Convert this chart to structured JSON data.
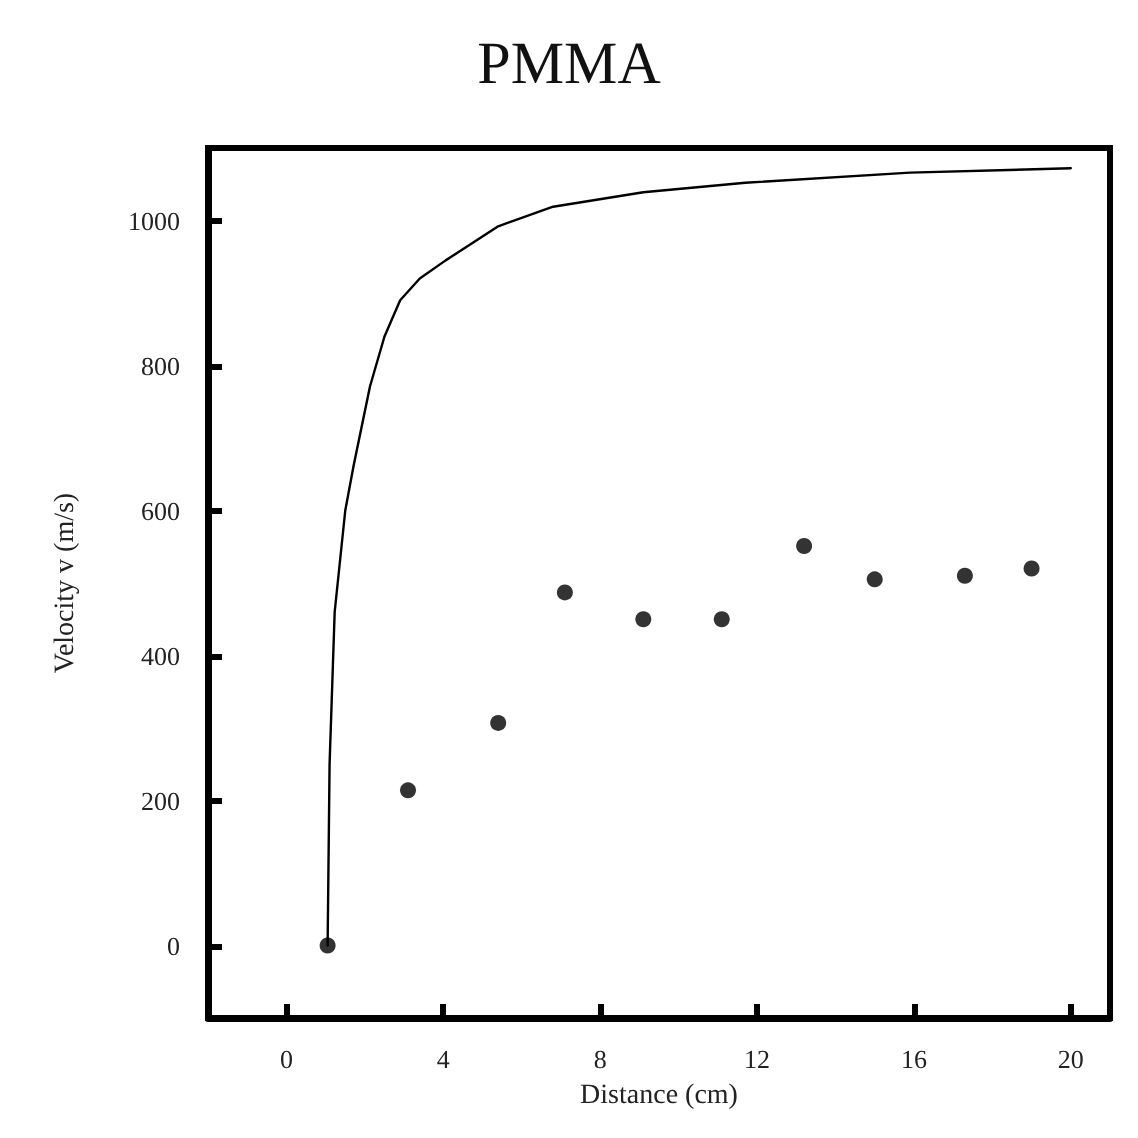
{
  "chart_data": {
    "type": "scatter",
    "title": "PMMA",
    "xlabel": "Distance (cm)",
    "ylabel": "Velocity v (m/s)",
    "xlim": [
      -2,
      21
    ],
    "xticks": [
      0,
      4,
      8,
      12,
      16,
      20
    ],
    "ylim": [
      -100,
      1100
    ],
    "yticks": [
      0,
      200,
      400,
      600,
      800,
      1000
    ],
    "grid": false,
    "series": [
      {
        "type": "line",
        "color": "#000000",
        "marker": "none",
        "x": [
          1.05,
          1.1,
          1.23,
          1.5,
          1.71,
          2.13,
          2.5,
          2.9,
          3.4,
          4.06,
          5.4,
          6.8,
          9.1,
          11.7,
          15.9,
          20
        ],
        "values": [
          0,
          250,
          460,
          600,
          661,
          771,
          840,
          890,
          920,
          945,
          992,
          1019,
          1039,
          1052,
          1066,
          1072
        ]
      },
      {
        "color": "#000000",
        "marker": "circle",
        "x": [
          1.05,
          3.1,
          5.4,
          7.1,
          9.1,
          11.1,
          13.2,
          15.0,
          17.3,
          19.0
        ],
        "values": [
          0,
          214,
          307,
          487,
          450,
          450,
          551,
          505,
          510,
          520
        ]
      }
    ]
  }
}
